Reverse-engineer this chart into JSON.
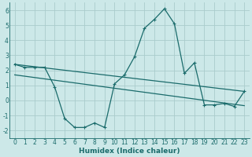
{
  "title": "",
  "xlabel": "Humidex (Indice chaleur)",
  "background_color": "#cce8e8",
  "grid_color": "#aacccc",
  "line_color": "#1a6b6b",
  "xlim": [
    -0.5,
    23.5
  ],
  "ylim": [
    -2.5,
    6.5
  ],
  "xticks": [
    0,
    1,
    2,
    3,
    4,
    5,
    6,
    7,
    8,
    9,
    10,
    11,
    12,
    13,
    14,
    15,
    16,
    17,
    18,
    19,
    20,
    21,
    22,
    23
  ],
  "yticks": [
    -2,
    -1,
    0,
    1,
    2,
    3,
    4,
    5,
    6
  ],
  "curve1_x": [
    0,
    1,
    2,
    3,
    4,
    5,
    6,
    7,
    8,
    9,
    10,
    11,
    12,
    13,
    14,
    15,
    16,
    17,
    18,
    19,
    20,
    21,
    22,
    23
  ],
  "curve1_y": [
    2.4,
    2.2,
    2.2,
    2.2,
    0.9,
    -1.2,
    -1.8,
    -1.8,
    -1.5,
    -1.8,
    1.1,
    1.7,
    2.9,
    4.8,
    5.4,
    6.1,
    5.1,
    1.8,
    2.5,
    -0.3,
    -0.3,
    -0.2,
    -0.4,
    0.6
  ],
  "line1_x": [
    0,
    23
  ],
  "line1_y": [
    2.4,
    0.6
  ],
  "line2_x": [
    0,
    23
  ],
  "line2_y": [
    1.7,
    -0.35
  ],
  "marker_size": 3,
  "line_width": 0.9,
  "tick_fontsize": 5.5,
  "xlabel_fontsize": 6.5
}
